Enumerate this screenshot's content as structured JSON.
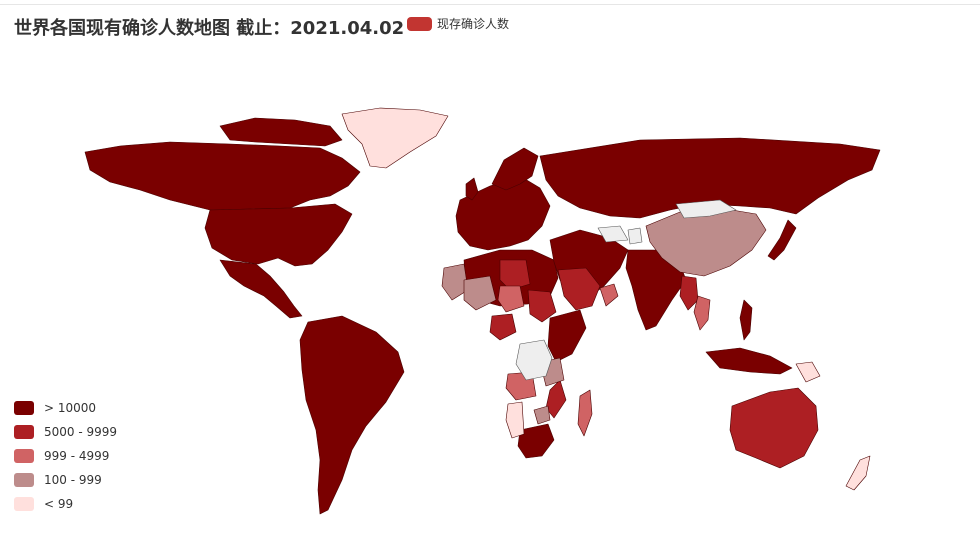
{
  "title": "世界各国现有确诊人数地图 截止：2021.04.02",
  "series_legend": {
    "label": "现存确诊人数",
    "color": "#c23531"
  },
  "visual_map": [
    {
      "label": "> 10000",
      "color": "#7a0000"
    },
    {
      "label": "5000 - 9999",
      "color": "#ad1f23"
    },
    {
      "label": "999 - 4999",
      "color": "#d06364"
    },
    {
      "label": "100 - 999",
      "color": "#bd8c8b"
    },
    {
      "label": "< 99",
      "color": "#ffe0dd"
    }
  ],
  "colors": {
    "border": "#555555",
    "no_data": "#eeeeee"
  }
}
